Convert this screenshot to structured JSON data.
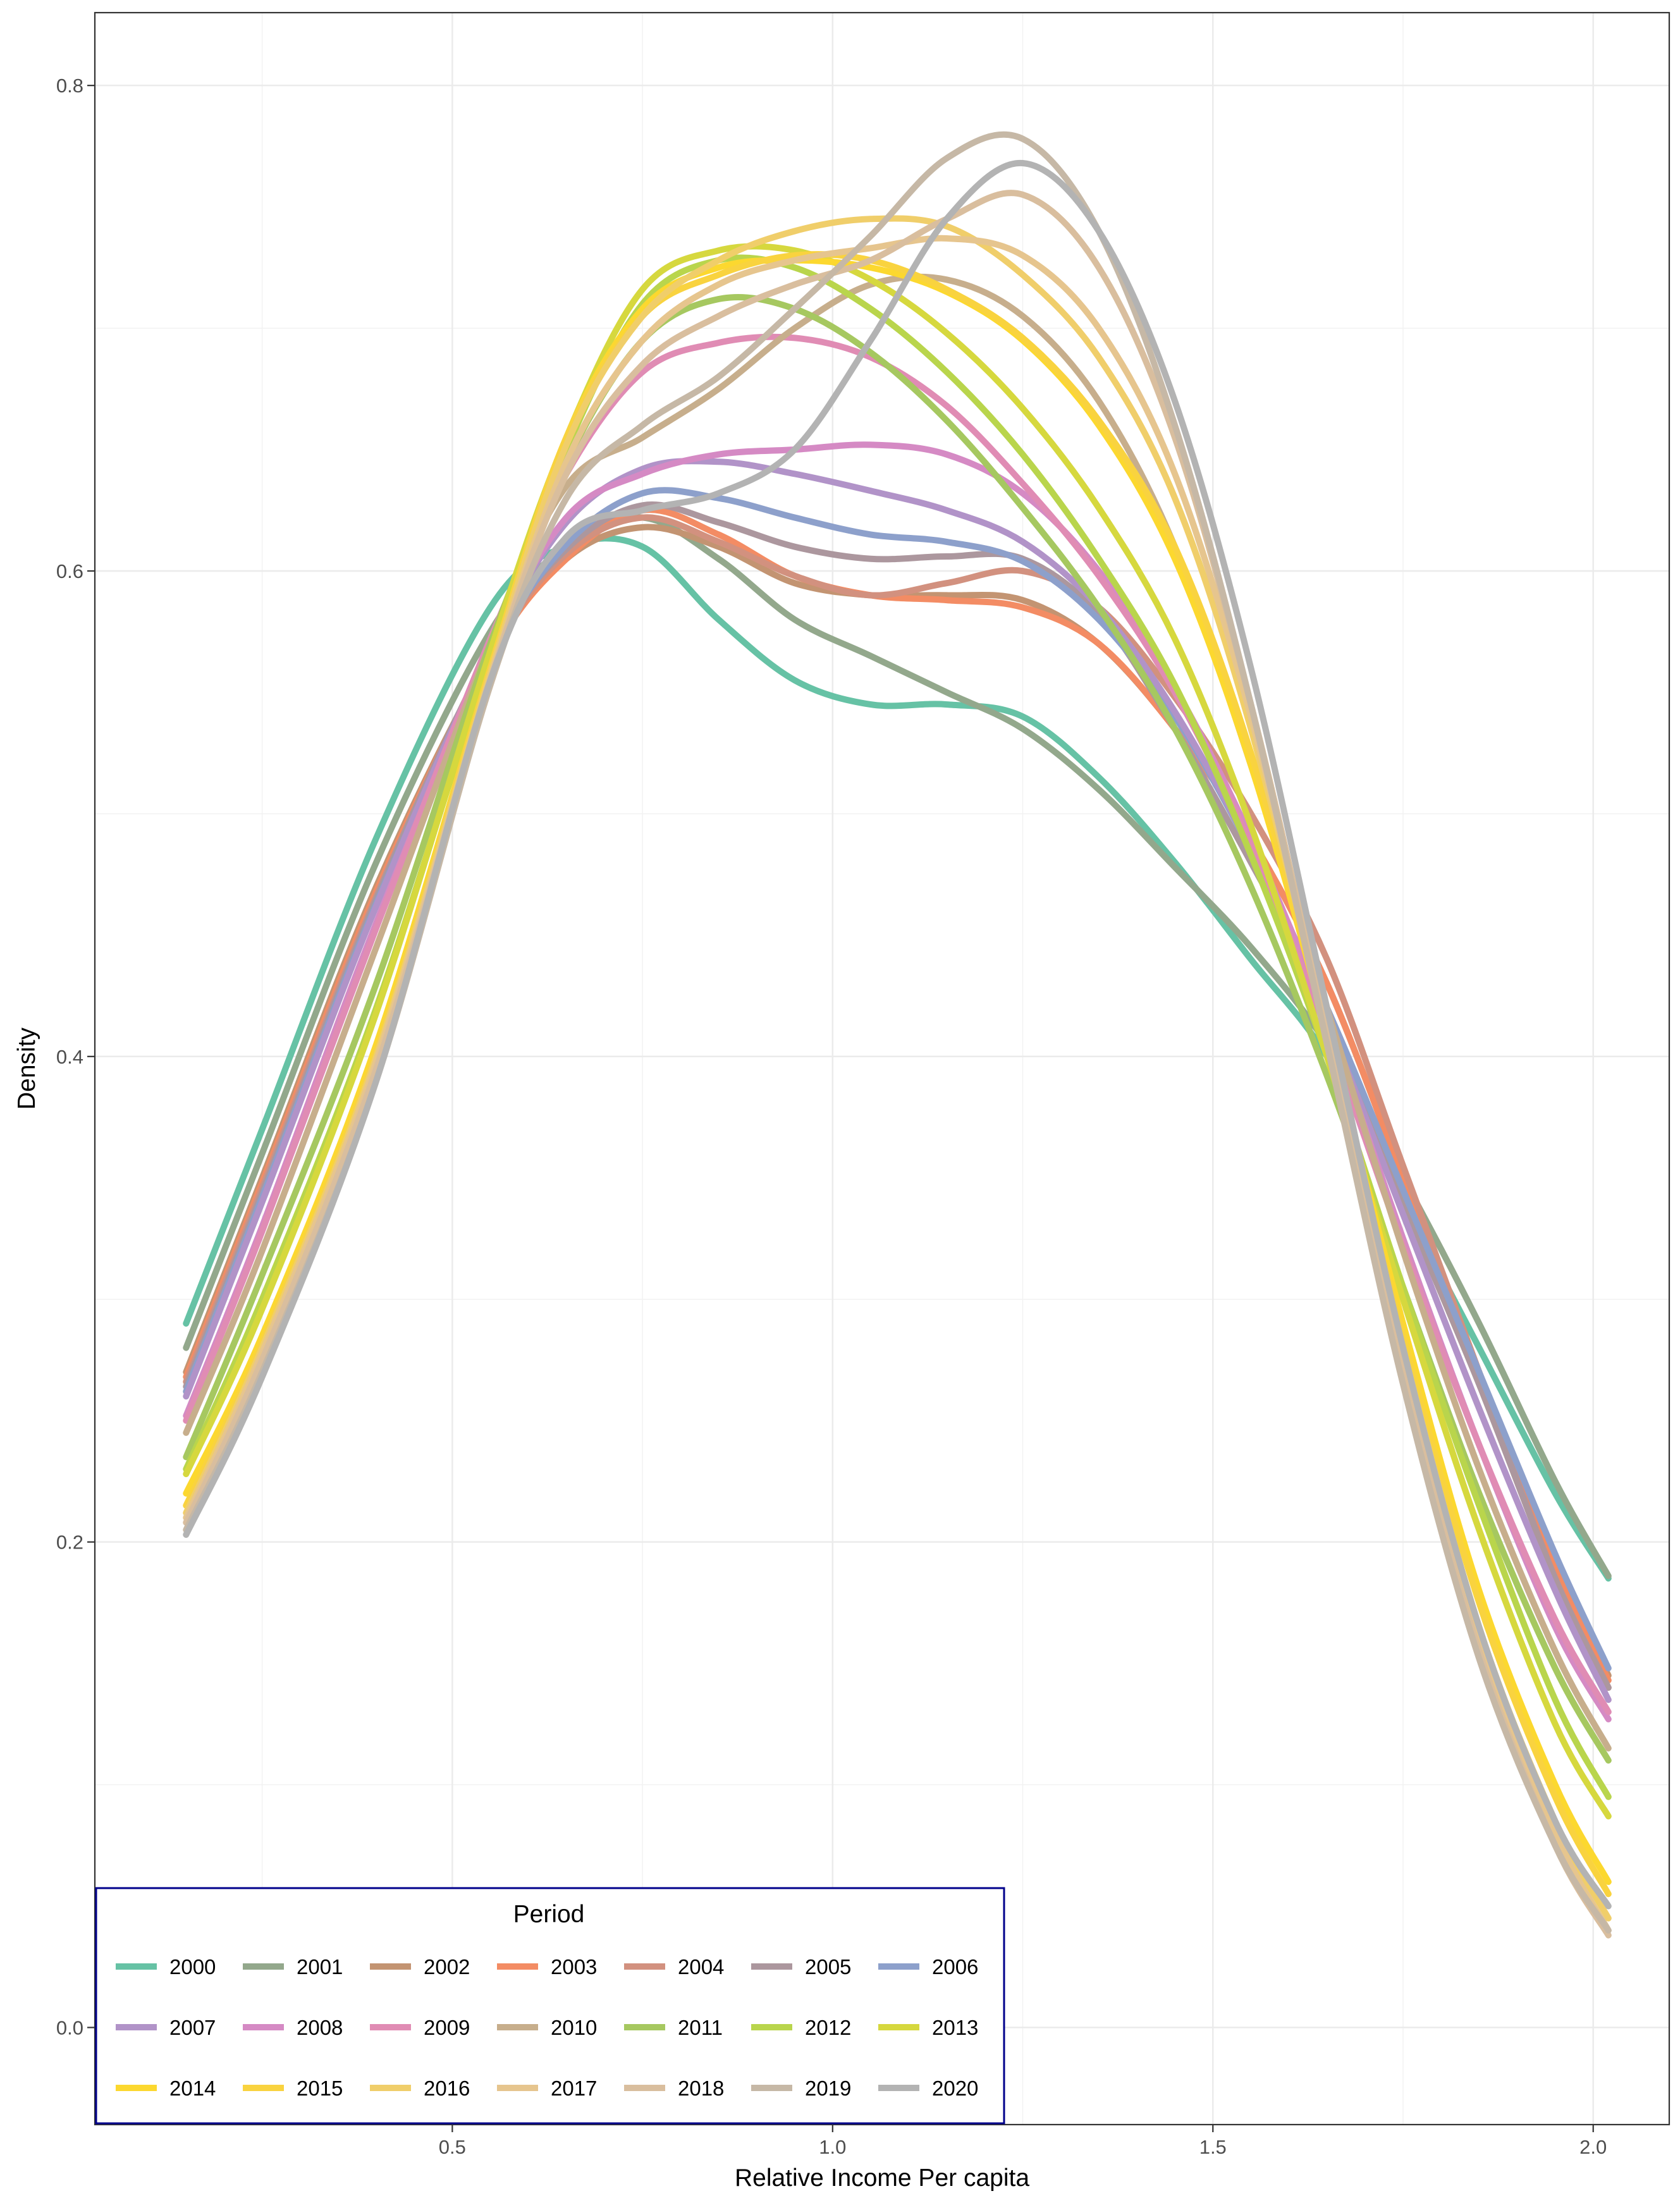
{
  "chart_data": {
    "type": "line",
    "title": "",
    "xlabel": "Relative Income Per capita",
    "ylabel": "Density",
    "xlim": [
      0.03,
      2.1
    ],
    "ylim": [
      -0.04,
      0.83
    ],
    "x_ticks": [
      0.5,
      1.0,
      1.5,
      2.0
    ],
    "x_tick_labels": [
      "0.5",
      "1.0",
      "1.5",
      "2.0"
    ],
    "y_ticks": [
      0.0,
      0.2,
      0.4,
      0.6,
      0.8
    ],
    "y_tick_labels": [
      "0.0",
      "0.2",
      "0.4",
      "0.6",
      "0.8"
    ],
    "grid": true,
    "legend": {
      "title": "Period",
      "placement": "bottom-left",
      "columns": 7
    },
    "x": [
      0.15,
      0.25,
      0.4,
      0.55,
      0.65,
      0.75,
      0.85,
      0.95,
      1.05,
      1.15,
      1.25,
      1.35,
      1.45,
      1.55,
      1.65,
      1.75,
      1.85,
      1.95,
      2.02
    ],
    "series": [
      {
        "name": "2000",
        "color": "#66C2A5",
        "values": [
          0.29,
          0.37,
          0.49,
          0.585,
          0.61,
          0.61,
          0.58,
          0.555,
          0.545,
          0.545,
          0.54,
          0.515,
          0.48,
          0.44,
          0.4,
          0.34,
          0.28,
          0.22,
          0.185
        ]
      },
      {
        "name": "2001",
        "color": "#93A88C",
        "values": [
          0.28,
          0.36,
          0.48,
          0.575,
          0.61,
          0.622,
          0.605,
          0.58,
          0.565,
          0.55,
          0.535,
          0.51,
          0.478,
          0.445,
          0.405,
          0.35,
          0.29,
          0.225,
          0.186
        ]
      },
      {
        "name": "2002",
        "color": "#C39472",
        "values": [
          0.27,
          0.35,
          0.47,
          0.565,
          0.605,
          0.618,
          0.61,
          0.595,
          0.59,
          0.59,
          0.588,
          0.57,
          0.535,
          0.49,
          0.43,
          0.35,
          0.27,
          0.19,
          0.145
        ]
      },
      {
        "name": "2003",
        "color": "#F38C64",
        "values": [
          0.268,
          0.348,
          0.468,
          0.565,
          0.605,
          0.625,
          0.615,
          0.598,
          0.59,
          0.588,
          0.585,
          0.57,
          0.535,
          0.49,
          0.43,
          0.35,
          0.27,
          0.19,
          0.143
        ]
      },
      {
        "name": "2004",
        "color": "#D2917F",
        "values": [
          0.266,
          0.346,
          0.466,
          0.565,
          0.607,
          0.622,
          0.612,
          0.598,
          0.59,
          0.595,
          0.6,
          0.585,
          0.548,
          0.5,
          0.44,
          0.355,
          0.27,
          0.185,
          0.14
        ]
      },
      {
        "name": "2005",
        "color": "#AC979E",
        "values": [
          0.264,
          0.344,
          0.465,
          0.567,
          0.609,
          0.627,
          0.62,
          0.61,
          0.605,
          0.606,
          0.605,
          0.582,
          0.535,
          0.48,
          0.42,
          0.34,
          0.265,
          0.185,
          0.14
        ]
      },
      {
        "name": "2006",
        "color": "#8DA0CB",
        "values": [
          0.262,
          0.342,
          0.463,
          0.565,
          0.611,
          0.632,
          0.63,
          0.622,
          0.615,
          0.612,
          0.604,
          0.58,
          0.54,
          0.485,
          0.42,
          0.345,
          0.27,
          0.195,
          0.148
        ]
      },
      {
        "name": "2007",
        "color": "#B193C8",
        "values": [
          0.26,
          0.34,
          0.462,
          0.568,
          0.62,
          0.642,
          0.645,
          0.64,
          0.633,
          0.625,
          0.612,
          0.585,
          0.542,
          0.485,
          0.415,
          0.335,
          0.255,
          0.18,
          0.135
        ]
      },
      {
        "name": "2008",
        "color": "#D58AC4",
        "values": [
          0.252,
          0.33,
          0.455,
          0.567,
          0.622,
          0.64,
          0.648,
          0.65,
          0.652,
          0.648,
          0.632,
          0.6,
          0.552,
          0.49,
          0.415,
          0.325,
          0.24,
          0.165,
          0.127
        ]
      },
      {
        "name": "2009",
        "color": "#E08CB4",
        "values": [
          0.25,
          0.328,
          0.453,
          0.572,
          0.64,
          0.682,
          0.694,
          0.696,
          0.688,
          0.668,
          0.636,
          0.598,
          0.55,
          0.487,
          0.41,
          0.322,
          0.24,
          0.168,
          0.13
        ]
      },
      {
        "name": "2010",
        "color": "#C7AE8C",
        "values": [
          0.245,
          0.32,
          0.445,
          0.57,
          0.635,
          0.655,
          0.675,
          0.7,
          0.718,
          0.72,
          0.705,
          0.67,
          0.61,
          0.52,
          0.42,
          0.32,
          0.23,
          0.155,
          0.115
        ]
      },
      {
        "name": "2011",
        "color": "#A6C860",
        "values": [
          0.235,
          0.31,
          0.43,
          0.57,
          0.645,
          0.695,
          0.712,
          0.708,
          0.69,
          0.662,
          0.626,
          0.585,
          0.535,
          0.47,
          0.392,
          0.305,
          0.22,
          0.148,
          0.11
        ]
      },
      {
        "name": "2012",
        "color": "#B9D54C",
        "values": [
          0.23,
          0.3,
          0.42,
          0.565,
          0.65,
          0.71,
          0.728,
          0.725,
          0.708,
          0.682,
          0.648,
          0.605,
          0.553,
          0.483,
          0.4,
          0.305,
          0.215,
          0.135,
          0.095
        ]
      },
      {
        "name": "2013",
        "color": "#D6D83E",
        "values": [
          0.228,
          0.296,
          0.418,
          0.567,
          0.655,
          0.716,
          0.732,
          0.732,
          0.72,
          0.698,
          0.667,
          0.626,
          0.572,
          0.495,
          0.4,
          0.3,
          0.205,
          0.125,
          0.087
        ]
      },
      {
        "name": "2014",
        "color": "#FCD82F",
        "values": [
          0.22,
          0.285,
          0.405,
          0.56,
          0.655,
          0.708,
          0.725,
          0.728,
          0.725,
          0.715,
          0.695,
          0.66,
          0.605,
          0.52,
          0.41,
          0.29,
          0.18,
          0.1,
          0.06
        ]
      },
      {
        "name": "2015",
        "color": "#F9D33F",
        "values": [
          0.215,
          0.282,
          0.402,
          0.56,
          0.655,
          0.705,
          0.722,
          0.73,
          0.728,
          0.716,
          0.696,
          0.662,
          0.61,
          0.525,
          0.41,
          0.285,
          0.175,
          0.095,
          0.055
        ]
      },
      {
        "name": "2016",
        "color": "#F0CE6A",
        "values": [
          0.212,
          0.28,
          0.4,
          0.558,
          0.652,
          0.705,
          0.728,
          0.74,
          0.745,
          0.742,
          0.722,
          0.688,
          0.63,
          0.535,
          0.41,
          0.28,
          0.165,
          0.085,
          0.045
        ]
      },
      {
        "name": "2017",
        "color": "#E6C58E",
        "values": [
          0.21,
          0.278,
          0.398,
          0.556,
          0.645,
          0.695,
          0.718,
          0.728,
          0.733,
          0.737,
          0.73,
          0.7,
          0.64,
          0.54,
          0.41,
          0.275,
          0.16,
          0.08,
          0.04
        ]
      },
      {
        "name": "2018",
        "color": "#D9BE9E",
        "values": [
          0.208,
          0.275,
          0.395,
          0.555,
          0.64,
          0.685,
          0.705,
          0.718,
          0.728,
          0.745,
          0.755,
          0.725,
          0.655,
          0.545,
          0.41,
          0.27,
          0.155,
          0.075,
          0.038
        ]
      },
      {
        "name": "2019",
        "color": "#C6B8A6",
        "values": [
          0.205,
          0.27,
          0.39,
          0.553,
          0.63,
          0.66,
          0.68,
          0.708,
          0.738,
          0.77,
          0.778,
          0.74,
          0.66,
          0.545,
          0.405,
          0.265,
          0.152,
          0.075,
          0.04
        ]
      },
      {
        "name": "2020",
        "color": "#B3B3B3",
        "values": [
          0.203,
          0.268,
          0.39,
          0.555,
          0.614,
          0.625,
          0.632,
          0.65,
          0.695,
          0.745,
          0.768,
          0.74,
          0.67,
          0.56,
          0.42,
          0.28,
          0.165,
          0.085,
          0.05
        ]
      }
    ]
  }
}
